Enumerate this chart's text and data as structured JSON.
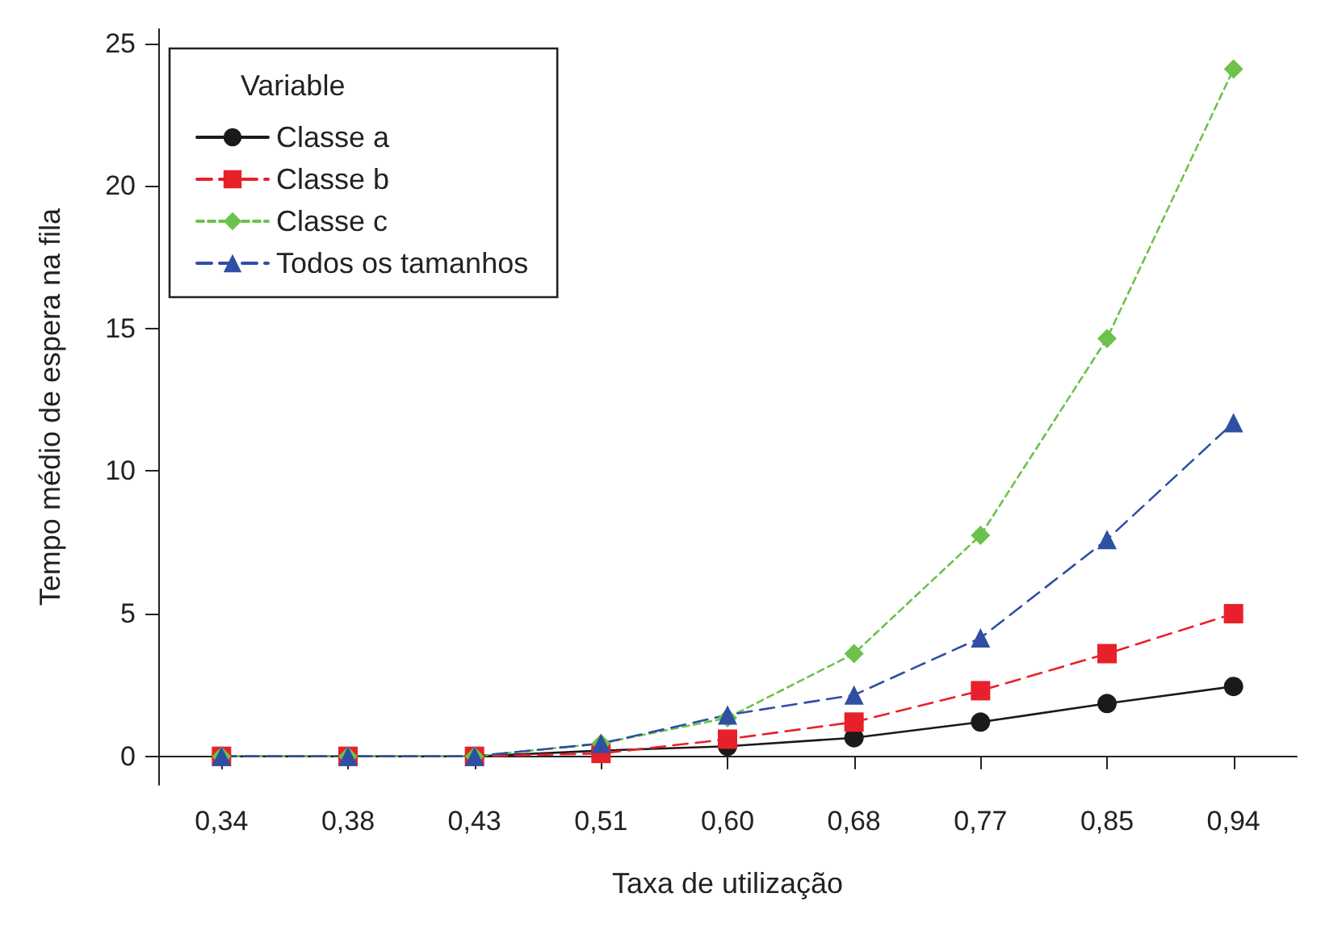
{
  "chart_data": {
    "type": "line",
    "xlabel": "Taxa de utilização",
    "ylabel": "Tempo médio de espera na fila",
    "legend_title": "Variable",
    "legend": "top left",
    "grid": false,
    "categories": [
      "0,34",
      "0,38",
      "0,43",
      "0,51",
      "0,60",
      "0,68",
      "0,77",
      "0,85",
      "0,94"
    ],
    "ylim": [
      -1,
      25.5
    ],
    "yticks": [
      0,
      5,
      10,
      15,
      20,
      25
    ],
    "series": [
      {
        "name": "Classe a",
        "color": "#1a1a1a",
        "marker": "circle",
        "line_style": "solid",
        "values": [
          0,
          0,
          0,
          0.2,
          0.35,
          0.65,
          1.2,
          1.85,
          2.45
        ]
      },
      {
        "name": "Classe b",
        "color": "#e8202a",
        "marker": "square",
        "line_style": "dashed",
        "values": [
          0,
          0,
          0,
          0.1,
          0.6,
          1.2,
          2.3,
          3.6,
          5.0
        ]
      },
      {
        "name": "Classe c",
        "color": "#6cc24a",
        "marker": "diamond",
        "line_style": "dotted",
        "values": [
          0,
          0,
          0,
          0.45,
          1.35,
          3.6,
          7.75,
          14.65,
          24.1
        ]
      },
      {
        "name": "Todos os tamanhos",
        "color": "#2e4fa3",
        "marker": "triangle",
        "line_style": "dashed",
        "values": [
          0,
          0,
          0,
          0.45,
          1.45,
          2.15,
          4.15,
          7.6,
          11.7
        ]
      }
    ]
  }
}
